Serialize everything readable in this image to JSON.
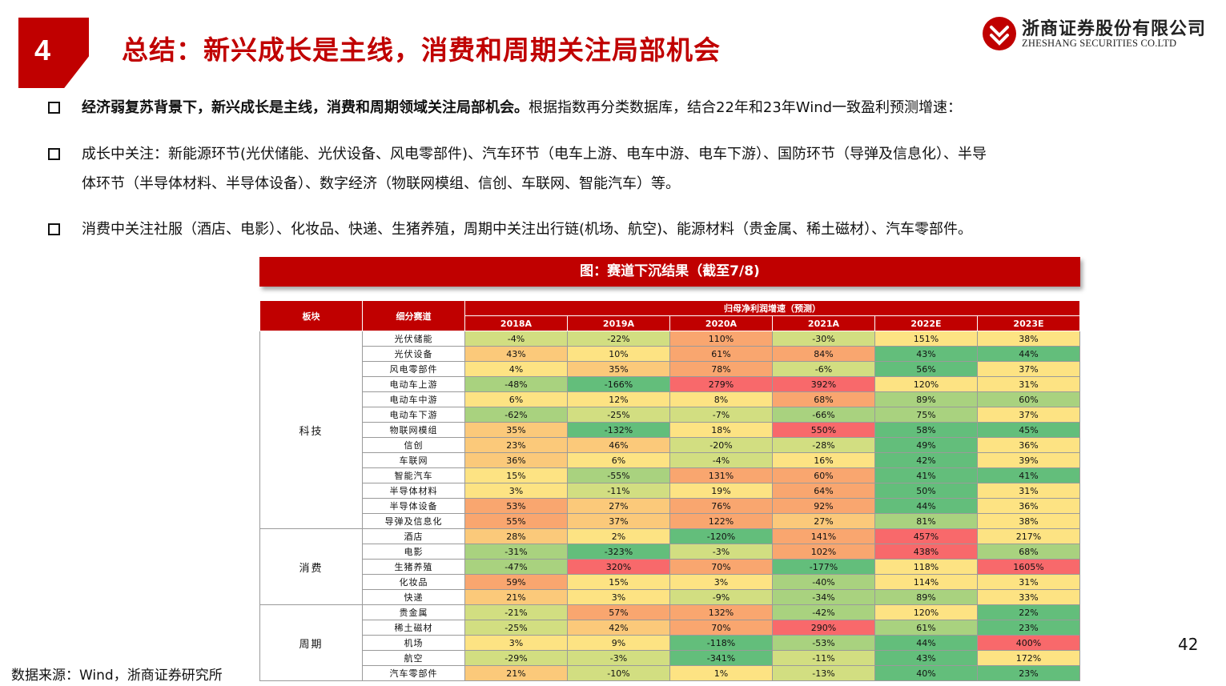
{
  "section": {
    "number": "4",
    "title": "总结：新兴成长是主线，消费和周期关注局部机会"
  },
  "logo": {
    "cn": "浙商证券股份有限公司",
    "en": "ZHESHANG SECURITIES CO.LTD"
  },
  "bullets": {
    "b1_bold": "经济弱复苏背景下，新兴成长是主线，消费和周期领域关注局部机会。",
    "b1_rest": "根据指数再分类数据库，结合22年和23年Wind一致盈利预测增速：",
    "b2_line1": "成长中关注：新能源环节(光伏储能、光伏设备、风电零部件)、汽车环节（电车上游、电车中游、电车下游）、国防环节（导弹及信息化）、半导",
    "b2_line2": "体环节（半导体材料、半导体设备）、数字经济（物联网模组、信创、车联网、智能汽车）等。",
    "b3": "消费中关注社服（酒店、电影）、化妆品、快递、生猪养殖，周期中关注出行链(机场、航空)、能源材料（贵金属、稀土磁材）、汽车零部件。"
  },
  "banner": "图：赛道下沉结果（截至7/8)",
  "table": {
    "h_sector": "板块",
    "h_sub": "细分赛道",
    "h_group": "归母净利润增速（预测）",
    "years": [
      "2018A",
      "2019A",
      "2020A",
      "2021A",
      "2022E",
      "2023E"
    ],
    "groups": [
      {
        "sector": "科技",
        "rows": [
          {
            "name": "光伏储能",
            "v": [
              "-4%",
              "-22%",
              "110%",
              "-30%",
              "151%",
              "38%"
            ]
          },
          {
            "name": "光伏设备",
            "v": [
              "43%",
              "10%",
              "61%",
              "84%",
              "43%",
              "44%"
            ]
          },
          {
            "name": "风电零部件",
            "v": [
              "4%",
              "35%",
              "78%",
              "-6%",
              "56%",
              "37%"
            ]
          },
          {
            "name": "电动车上游",
            "v": [
              "-48%",
              "-166%",
              "279%",
              "392%",
              "120%",
              "31%"
            ]
          },
          {
            "name": "电动车中游",
            "v": [
              "6%",
              "12%",
              "8%",
              "68%",
              "89%",
              "60%"
            ]
          },
          {
            "name": "电动车下游",
            "v": [
              "-62%",
              "-25%",
              "-7%",
              "-66%",
              "75%",
              "37%"
            ]
          },
          {
            "name": "物联网模组",
            "v": [
              "35%",
              "-132%",
              "18%",
              "550%",
              "58%",
              "45%"
            ]
          },
          {
            "name": "信创",
            "v": [
              "23%",
              "46%",
              "-20%",
              "-28%",
              "49%",
              "36%"
            ]
          },
          {
            "name": "车联网",
            "v": [
              "36%",
              "6%",
              "-4%",
              "16%",
              "42%",
              "39%"
            ]
          },
          {
            "name": "智能汽车",
            "v": [
              "15%",
              "-55%",
              "131%",
              "60%",
              "41%",
              "41%"
            ]
          },
          {
            "name": "半导体材料",
            "v": [
              "3%",
              "-11%",
              "19%",
              "64%",
              "50%",
              "31%"
            ]
          },
          {
            "name": "半导体设备",
            "v": [
              "53%",
              "27%",
              "76%",
              "92%",
              "44%",
              "36%"
            ]
          },
          {
            "name": "导弹及信息化",
            "v": [
              "55%",
              "37%",
              "122%",
              "27%",
              "81%",
              "38%"
            ]
          }
        ]
      },
      {
        "sector": "消费",
        "rows": [
          {
            "name": "酒店",
            "v": [
              "28%",
              "2%",
              "-120%",
              "141%",
              "457%",
              "217%"
            ]
          },
          {
            "name": "电影",
            "v": [
              "-31%",
              "-323%",
              "-3%",
              "102%",
              "438%",
              "68%"
            ]
          },
          {
            "name": "生猪养殖",
            "v": [
              "-47%",
              "320%",
              "70%",
              "-177%",
              "118%",
              "1605%"
            ]
          },
          {
            "name": "化妆品",
            "v": [
              "59%",
              "15%",
              "3%",
              "-40%",
              "114%",
              "31%"
            ]
          },
          {
            "name": "快递",
            "v": [
              "21%",
              "3%",
              "-9%",
              "-34%",
              "89%",
              "33%"
            ]
          }
        ]
      },
      {
        "sector": "周期",
        "rows": [
          {
            "name": "贵金属",
            "v": [
              "-21%",
              "57%",
              "132%",
              "-42%",
              "120%",
              "22%"
            ]
          },
          {
            "name": "稀土磁材",
            "v": [
              "-25%",
              "42%",
              "70%",
              "290%",
              "61%",
              "23%"
            ]
          },
          {
            "name": "机场",
            "v": [
              "3%",
              "9%",
              "-118%",
              "-53%",
              "44%",
              "400%"
            ]
          },
          {
            "name": "航空",
            "v": [
              "-29%",
              "-3%",
              "-341%",
              "-11%",
              "43%",
              "172%"
            ]
          },
          {
            "name": "汽车零部件",
            "v": [
              "21%",
              "-10%",
              "1%",
              "-13%",
              "40%",
              "23%"
            ]
          }
        ]
      }
    ],
    "colors": {
      "red": "#f8696b",
      "orange": "#f9a66f",
      "lorange": "#fbc97a",
      "yellow": "#fde383",
      "lime": "#d2de81",
      "lgreen": "#a9d27f",
      "green": "#63be7b",
      "header_red": "#c00000"
    }
  },
  "page_number": "42",
  "source": "数据来源：Wind，浙商证券研究所"
}
